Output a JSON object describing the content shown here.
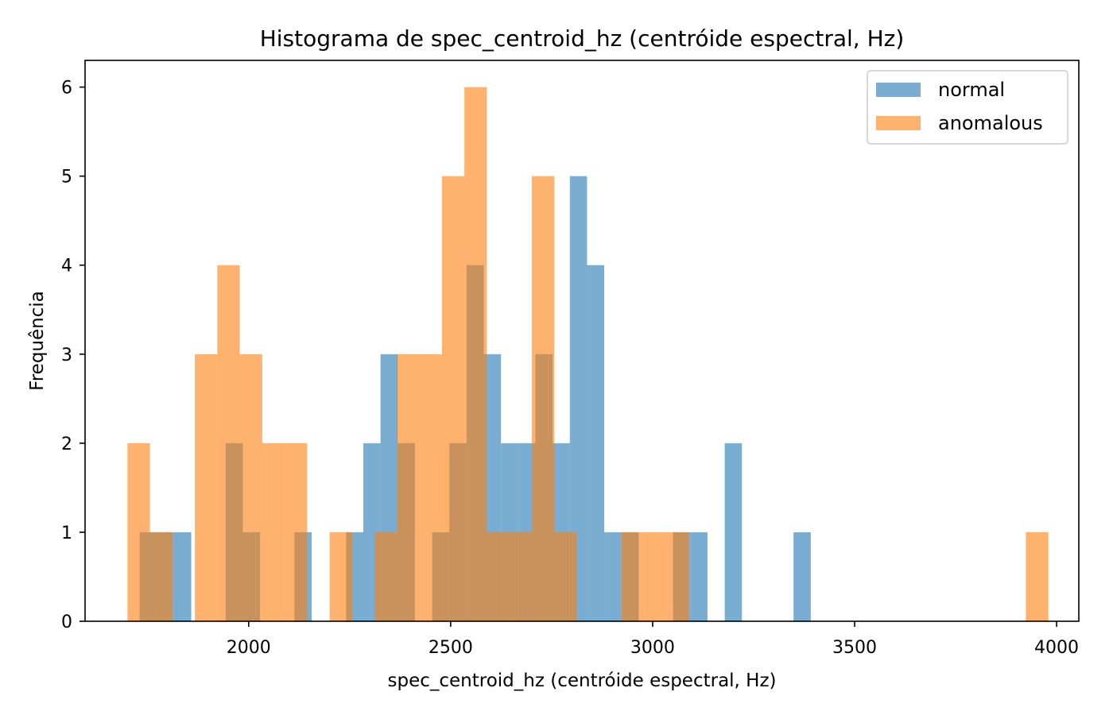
{
  "chart_data": {
    "type": "bar",
    "title": "Histograma de spec_centroid_hz (centróide espectral, Hz)",
    "xlabel": "spec_centroid_hz (centróide espectral, Hz)",
    "ylabel": "Frequência",
    "xlim": [
      1595,
      4055
    ],
    "ylim": [
      0,
      6.3
    ],
    "xticks": [
      "2000",
      "2500",
      "3000",
      "3500",
      "4000"
    ],
    "yticks": [
      "0",
      "1",
      "2",
      "3",
      "4",
      "5",
      "6"
    ],
    "grid": false,
    "legend_position": "top-right",
    "series": [
      {
        "name": "normal",
        "color": "#1f77b4",
        "opacity": 0.6,
        "bin_start": 1730,
        "bin_width": 42.6,
        "counts": [
          1,
          1,
          1,
          0,
          0,
          2,
          1,
          0,
          0,
          1,
          0,
          0,
          1,
          2,
          3,
          2,
          0,
          1,
          2,
          4,
          3,
          2,
          2,
          3,
          2,
          5,
          4,
          1,
          1,
          0,
          0,
          1,
          1,
          0,
          2,
          0,
          0,
          0,
          1
        ]
      },
      {
        "name": "anomalous",
        "color": "#ff7f0e",
        "opacity": 0.6,
        "bin_start": 1700,
        "bin_width": 55.6,
        "counts": [
          2,
          1,
          0,
          3,
          4,
          3,
          2,
          2,
          0,
          1,
          0,
          1,
          3,
          3,
          5,
          6,
          1,
          1,
          5,
          1,
          0,
          0,
          1,
          1,
          1,
          0,
          0,
          0,
          0,
          0,
          0,
          0,
          0,
          0,
          0,
          0,
          0,
          0,
          0,
          0,
          1
        ]
      }
    ]
  }
}
